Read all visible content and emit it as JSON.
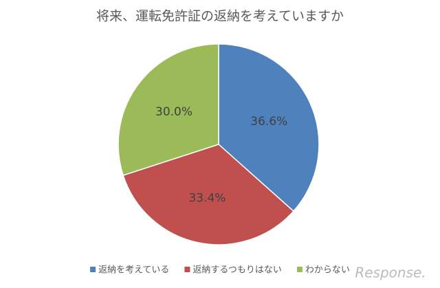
{
  "chart_data": {
    "type": "pie",
    "title": "将来、運転免許証の返納を考えていますか",
    "categories": [
      "返納を考えている",
      "返納するつもりはない",
      "わからない"
    ],
    "values": [
      36.6,
      33.4,
      30.0
    ],
    "value_labels": [
      "36.6%",
      "33.4%",
      "30.0%"
    ],
    "colors": [
      "#4f81bd",
      "#c0504d",
      "#9bbb59"
    ],
    "legend": "bottom",
    "watermark": "Response."
  }
}
